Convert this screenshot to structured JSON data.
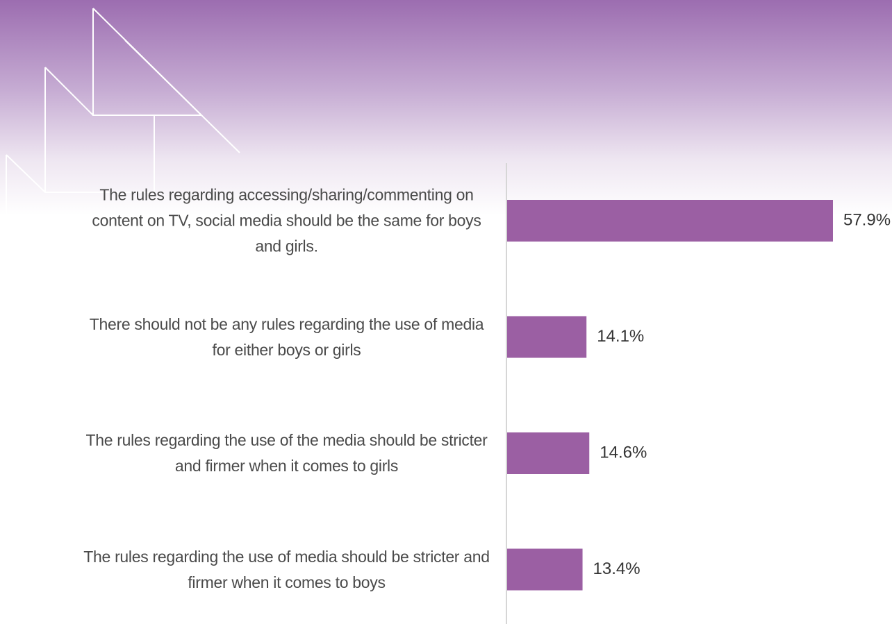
{
  "chart_data": {
    "type": "bar",
    "orientation": "horizontal",
    "color": "#9b5fa3",
    "categories": [
      "The rules regarding accessing/sharing/commenting on content on TV, social media should be the same for boys and girls.",
      "There should not be any rules regarding the use of media for either boys or girls",
      "The rules regarding the use of the media should be stricter and firmer when it comes to girls",
      "The rules regarding the use of media should be stricter and firmer when it comes to boys"
    ],
    "values": [
      57.9,
      14.1,
      14.6,
      13.4
    ],
    "value_labels": [
      "57.9%",
      "14.1%",
      "14.6%",
      "13.4%"
    ]
  }
}
